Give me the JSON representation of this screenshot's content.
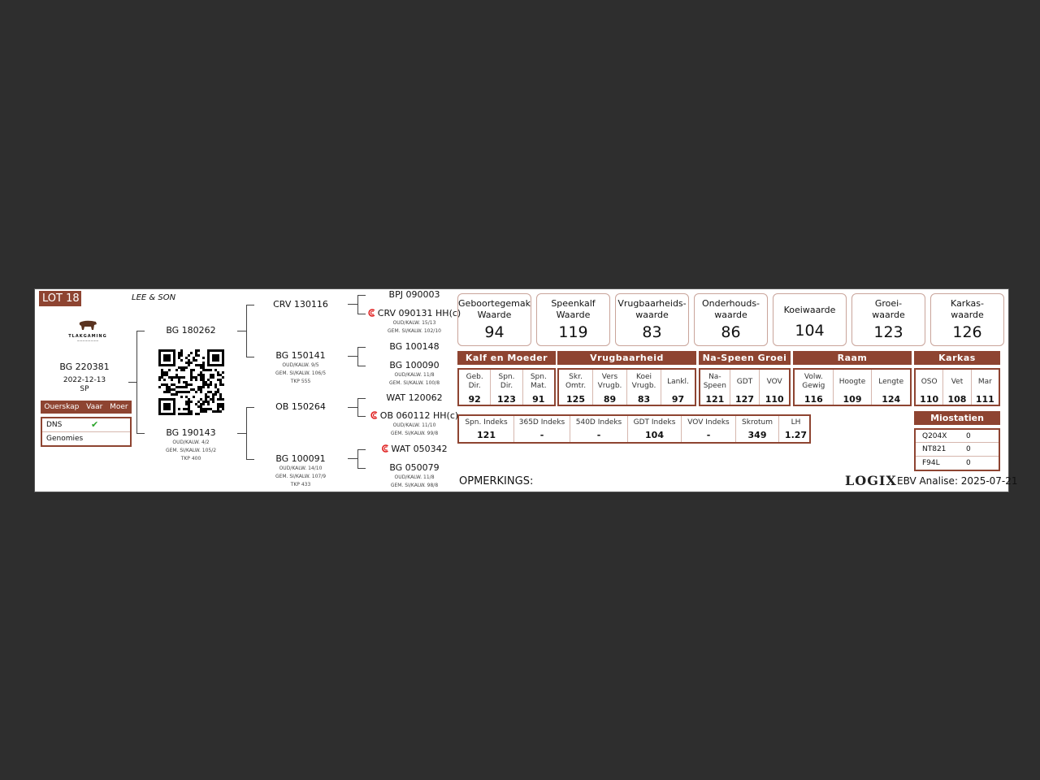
{
  "lot": "LOT 18",
  "breeder": "LEE & SON",
  "logo_text": "TLAKGAMING",
  "animal": {
    "id": "BG 220381",
    "dob": "2022-12-13",
    "type": "SP"
  },
  "parentage": {
    "headers": [
      "Ouerskap",
      "Vaar",
      "Moer"
    ],
    "rows": [
      {
        "label": "DNS",
        "check": "✔"
      },
      {
        "label": "Genomies"
      }
    ]
  },
  "pedigree": {
    "sire": {
      "id": "BG 180262"
    },
    "dam": {
      "id": "BG 190143",
      "lines": [
        "OUD/KALW. 4/2",
        "GEM. SI/KALW. 105/2",
        "TKP 400"
      ]
    },
    "ss": {
      "id": "CRV 130116"
    },
    "sd": {
      "id": "BG 150141",
      "lines": [
        "OUD/KALW. 9/5",
        "GEM. SI/KALW. 106/5",
        "TKP 555"
      ]
    },
    "ds": {
      "id": "OB 150264"
    },
    "dd": {
      "id": "BG 100091",
      "lines": [
        "OUD/KALW. 14/10",
        "GEM. SI/KALW. 107/9",
        "TKP 433"
      ]
    },
    "g3": [
      {
        "id": "BPJ 090003"
      },
      {
        "id": "CRV 090131",
        "suffix": "HH(c)",
        "lines": [
          "OUD/KALW. 15/13",
          "GEM. SI/KALW. 102/10"
        ]
      },
      {
        "id": "BG 100148"
      },
      {
        "id": "BG 100090",
        "lines": [
          "OUD/KALW. 11/8",
          "GEM. SI/KALW. 100/8"
        ]
      },
      {
        "id": "WAT 120062"
      },
      {
        "id": "OB 060112",
        "suffix": "HH(c)",
        "lines": [
          "OUD/KALW. 11/10",
          "GEM. SI/KALW. 99/8"
        ]
      },
      {
        "id": "WAT 050342"
      },
      {
        "id": "BG 050079",
        "lines": [
          "OUD/KALW. 11/8",
          "GEM. SI/KALW. 98/8"
        ]
      }
    ]
  },
  "values": [
    {
      "l1": "Geboortegemak",
      "l2": "Waarde",
      "v": "94"
    },
    {
      "l1": "Speenkalf",
      "l2": "Waarde",
      "v": "119"
    },
    {
      "l1": "Vrugbaarheids-",
      "l2": "waarde",
      "v": "83"
    },
    {
      "l1": "Onderhouds-",
      "l2": "waarde",
      "v": "86"
    },
    {
      "l1": "Koeiwaarde",
      "v": "104"
    },
    {
      "l1": "Groei-",
      "l2": "waarde",
      "v": "123"
    },
    {
      "l1": "Karkas-",
      "l2": "waarde",
      "v": "126"
    }
  ],
  "groups": [
    {
      "name": "Kalf en Moeder",
      "traits": [
        {
          "l": "Geb. Dir.",
          "v": "92"
        },
        {
          "l": "Spn. Dir.",
          "v": "123"
        },
        {
          "l": "Spn. Mat.",
          "v": "91"
        }
      ]
    },
    {
      "name": "Vrugbaarheid",
      "traits": [
        {
          "l": "Skr. Omtr.",
          "v": "125"
        },
        {
          "l": "Vers Vrugb.",
          "v": "89"
        },
        {
          "l": "Koei Vrugb.",
          "v": "83"
        },
        {
          "l": "Lankl.",
          "v": "97"
        }
      ]
    },
    {
      "name": "Na-Speen Groei",
      "traits": [
        {
          "l": "Na- Speen",
          "v": "121"
        },
        {
          "l": "GDT",
          "v": "127"
        },
        {
          "l": "VOV",
          "v": "110"
        }
      ]
    },
    {
      "name": "Raam",
      "traits": [
        {
          "l": "Volw. Gewig",
          "v": "116"
        },
        {
          "l": "Hoogte",
          "v": "109"
        },
        {
          "l": "Lengte",
          "v": "124"
        }
      ]
    },
    {
      "name": "Karkas",
      "traits": [
        {
          "l": "OSO",
          "v": "110"
        },
        {
          "l": "Vet",
          "v": "108"
        },
        {
          "l": "Mar",
          "v": "111"
        }
      ]
    }
  ],
  "indexes": [
    {
      "l": "Spn. Indeks",
      "v": "121"
    },
    {
      "l": "365D Indeks",
      "v": "-"
    },
    {
      "l": "540D Indeks",
      "v": "-"
    },
    {
      "l": "GDT Indeks",
      "v": "104"
    },
    {
      "l": "VOV Indeks",
      "v": "-"
    },
    {
      "l": "Skrotum",
      "v": "349"
    },
    {
      "l": "LH",
      "v": "1.27"
    }
  ],
  "myostatin": {
    "title": "Miostatien",
    "rows": [
      {
        "l": "Q204X",
        "v": "0"
      },
      {
        "l": "NT821",
        "v": "0"
      },
      {
        "l": "F94L",
        "v": "0"
      }
    ]
  },
  "remarks_label": "OPMERKINGS:",
  "brand": "LOGIX",
  "ebv": "EBV Analise: 2025-07-21",
  "colors": {
    "accent": "#8e4431",
    "check": "#2aa52a",
    "genetic_icon": "#e02020"
  }
}
